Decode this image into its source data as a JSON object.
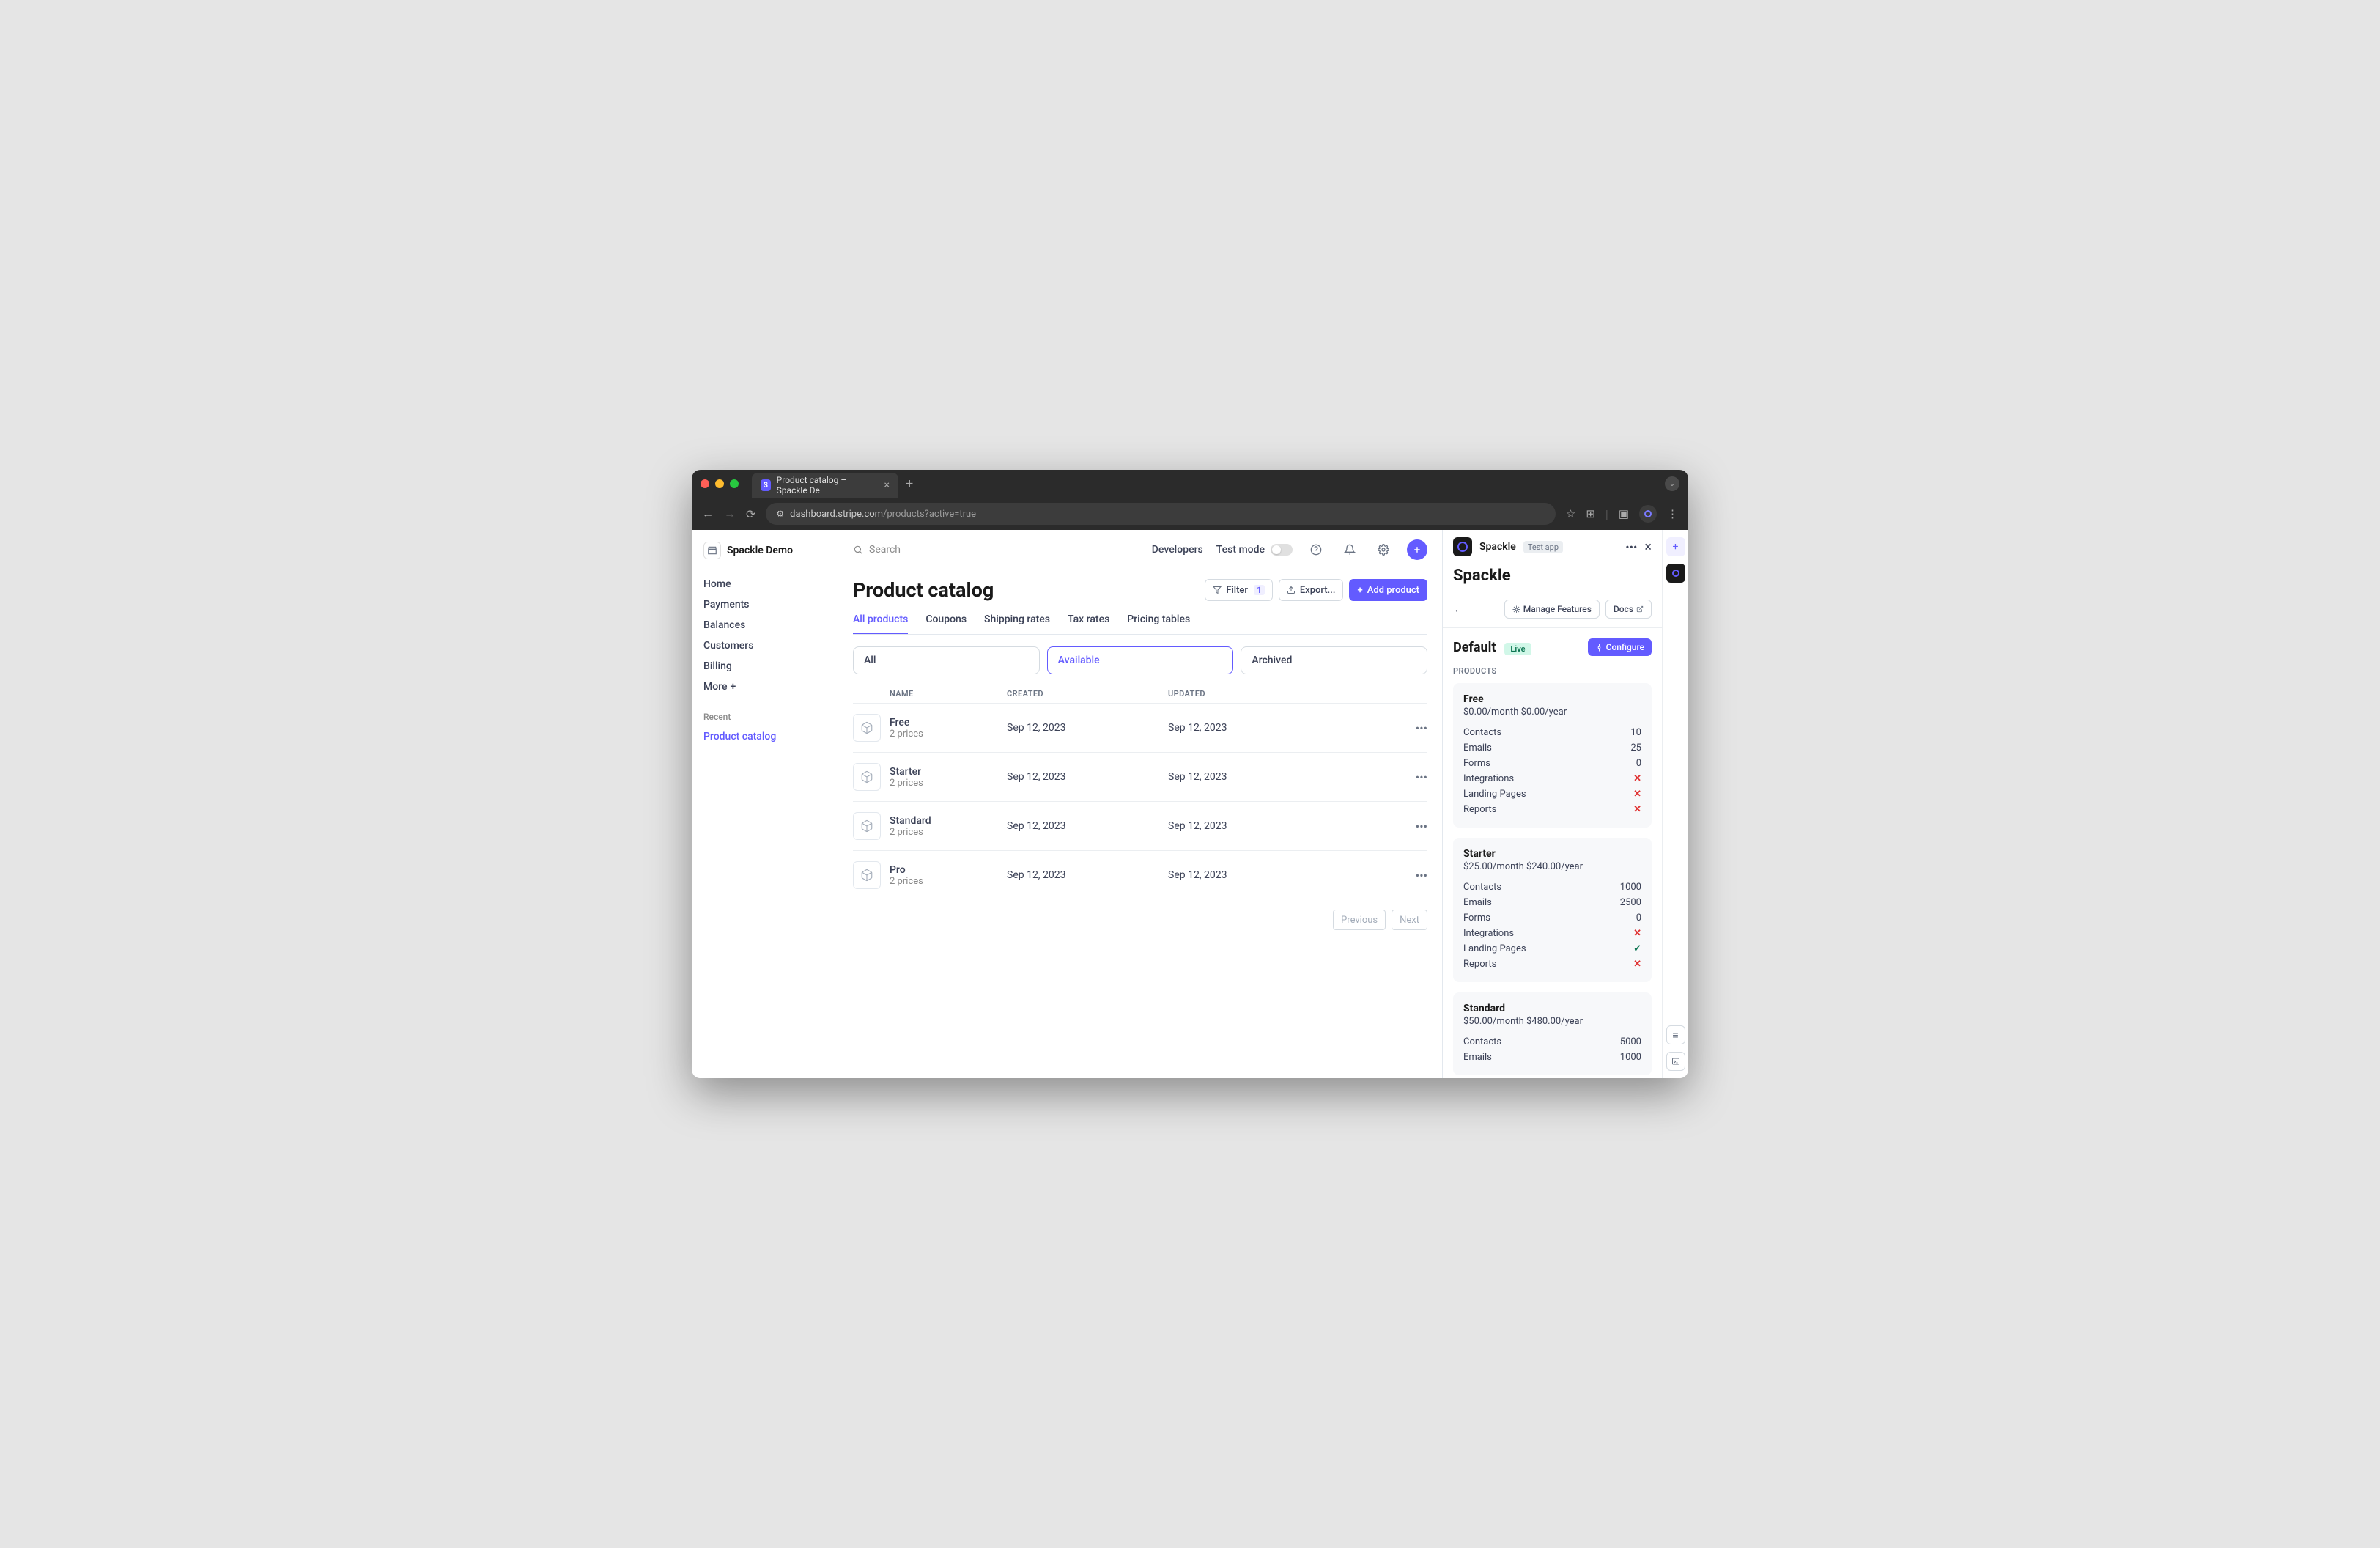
{
  "browser": {
    "tab_title": "Product catalog – Spackle De",
    "url_host": "dashboard.stripe.com",
    "url_path": "/products?active=true"
  },
  "workspace": {
    "name": "Spackle Demo"
  },
  "sidebar": {
    "items": [
      "Home",
      "Payments",
      "Balances",
      "Customers",
      "Billing"
    ],
    "more": "More",
    "recent_label": "Recent",
    "active": "Product catalog"
  },
  "topbar": {
    "search": "Search",
    "developers": "Developers",
    "test_mode": "Test mode"
  },
  "page": {
    "title": "Product catalog",
    "filter": "Filter",
    "filter_count": "1",
    "export": "Export...",
    "add": "Add product"
  },
  "tabs": [
    "All products",
    "Coupons",
    "Shipping rates",
    "Tax rates",
    "Pricing tables"
  ],
  "segments": [
    "All",
    "Available",
    "Archived"
  ],
  "table": {
    "cols": [
      "NAME",
      "CREATED",
      "UPDATED"
    ],
    "rows": [
      {
        "name": "Free",
        "sub": "2 prices",
        "created": "Sep 12, 2023",
        "updated": "Sep 12, 2023"
      },
      {
        "name": "Starter",
        "sub": "2 prices",
        "created": "Sep 12, 2023",
        "updated": "Sep 12, 2023"
      },
      {
        "name": "Standard",
        "sub": "2 prices",
        "created": "Sep 12, 2023",
        "updated": "Sep 12, 2023"
      },
      {
        "name": "Pro",
        "sub": "2 prices",
        "created": "Sep 12, 2023",
        "updated": "Sep 12, 2023"
      }
    ],
    "prev": "Previous",
    "next": "Next"
  },
  "panel": {
    "app": "Spackle",
    "badge": "Test app",
    "title": "Spackle",
    "manage": "Manage Features",
    "docs": "Docs",
    "env": "Default",
    "env_badge": "Live",
    "configure": "Configure",
    "section": "PRODUCTS",
    "products": [
      {
        "name": "Free",
        "price": "$0.00/month  $0.00/year",
        "features": [
          {
            "label": "Contacts",
            "val": "10"
          },
          {
            "label": "Emails",
            "val": "25"
          },
          {
            "label": "Forms",
            "val": "0"
          },
          {
            "label": "Integrations",
            "val": "x"
          },
          {
            "label": "Landing Pages",
            "val": "x"
          },
          {
            "label": "Reports",
            "val": "x"
          }
        ]
      },
      {
        "name": "Starter",
        "price": "$25.00/month  $240.00/year",
        "features": [
          {
            "label": "Contacts",
            "val": "1000"
          },
          {
            "label": "Emails",
            "val": "2500"
          },
          {
            "label": "Forms",
            "val": "0"
          },
          {
            "label": "Integrations",
            "val": "x"
          },
          {
            "label": "Landing Pages",
            "val": "ck"
          },
          {
            "label": "Reports",
            "val": "x"
          }
        ]
      },
      {
        "name": "Standard",
        "price": "$50.00/month  $480.00/year",
        "features": [
          {
            "label": "Contacts",
            "val": "5000"
          },
          {
            "label": "Emails",
            "val": "1000"
          }
        ]
      }
    ]
  },
  "colors": {
    "primary": "#635bff",
    "text": "#3c4257",
    "muted": "#6a7383",
    "border": "#e3e8ee",
    "card": "#f7f8fa",
    "green": "#0a7450",
    "red": "#e03131"
  }
}
